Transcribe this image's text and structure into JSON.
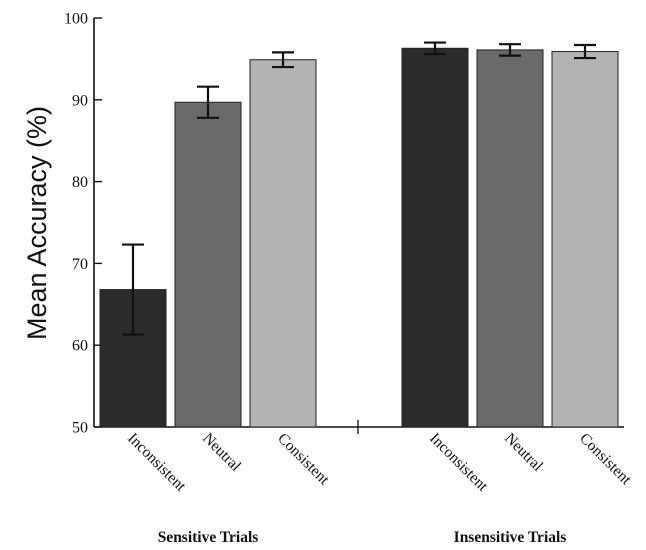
{
  "chart_data": {
    "type": "bar",
    "ylabel": "Mean Accuracy (%)",
    "ylim": [
      50,
      100
    ],
    "yticks": [
      50,
      60,
      70,
      80,
      90,
      100
    ],
    "grid": false,
    "legend": "none",
    "groups": [
      {
        "name": "Sensitive Trials",
        "bars": [
          {
            "category": "Inconsistent",
            "value": 66.8,
            "error": 5.5,
            "color": "#2b2b2b"
          },
          {
            "category": "Neutral",
            "value": 89.7,
            "error": 1.9,
            "color": "#6a6a6a"
          },
          {
            "category": "Consistent",
            "value": 94.9,
            "error": 0.9,
            "color": "#b3b3b3"
          }
        ]
      },
      {
        "name": "Insensitive Trials",
        "bars": [
          {
            "category": "Inconsistent",
            "value": 96.3,
            "error": 0.7,
            "color": "#2b2b2b"
          },
          {
            "category": "Neutral",
            "value": 96.1,
            "error": 0.7,
            "color": "#6a6a6a"
          },
          {
            "category": "Consistent",
            "value": 95.9,
            "error": 0.8,
            "color": "#b3b3b3"
          }
        ]
      }
    ]
  }
}
